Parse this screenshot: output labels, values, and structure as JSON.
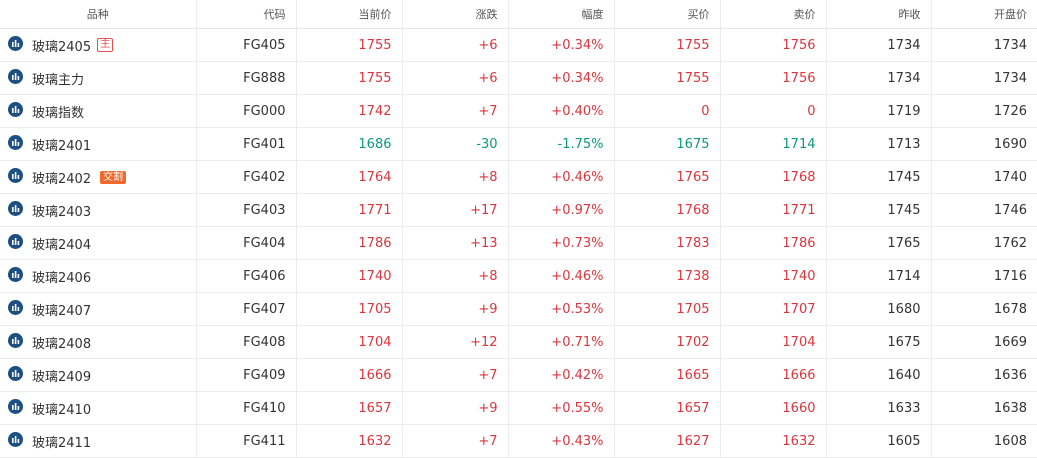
{
  "colors": {
    "up": "#d9363e",
    "down": "#0d9a7b",
    "icon": "#1d4f82",
    "tag_main": "#e84d4d",
    "tag_delivery": "#f0692b"
  },
  "headers": [
    "品种",
    "代码",
    "当前价",
    "涨跌",
    "幅度",
    "买价",
    "卖价",
    "昨收",
    "开盘价"
  ],
  "rows": [
    {
      "name": "玻璃2405",
      "tag": "主",
      "code": "FG405",
      "price": "1755",
      "change": "+6",
      "pct": "+0.34%",
      "bid": "1755",
      "ask": "1756",
      "prev": "1734",
      "open": "1734",
      "dir": "up"
    },
    {
      "name": "玻璃主力",
      "tag": "",
      "code": "FG888",
      "price": "1755",
      "change": "+6",
      "pct": "+0.34%",
      "bid": "1755",
      "ask": "1756",
      "prev": "1734",
      "open": "1734",
      "dir": "up"
    },
    {
      "name": "玻璃指数",
      "tag": "",
      "code": "FG000",
      "price": "1742",
      "change": "+7",
      "pct": "+0.40%",
      "bid": "0",
      "ask": "0",
      "prev": "1719",
      "open": "1726",
      "dir": "up"
    },
    {
      "name": "玻璃2401",
      "tag": "",
      "code": "FG401",
      "price": "1686",
      "change": "-30",
      "pct": "-1.75%",
      "bid": "1675",
      "ask": "1714",
      "prev": "1713",
      "open": "1690",
      "dir": "down"
    },
    {
      "name": "玻璃2402",
      "tag": "交割",
      "code": "FG402",
      "price": "1764",
      "change": "+8",
      "pct": "+0.46%",
      "bid": "1765",
      "ask": "1768",
      "prev": "1745",
      "open": "1740",
      "dir": "up"
    },
    {
      "name": "玻璃2403",
      "tag": "",
      "code": "FG403",
      "price": "1771",
      "change": "+17",
      "pct": "+0.97%",
      "bid": "1768",
      "ask": "1771",
      "prev": "1745",
      "open": "1746",
      "dir": "up"
    },
    {
      "name": "玻璃2404",
      "tag": "",
      "code": "FG404",
      "price": "1786",
      "change": "+13",
      "pct": "+0.73%",
      "bid": "1783",
      "ask": "1786",
      "prev": "1765",
      "open": "1762",
      "dir": "up"
    },
    {
      "name": "玻璃2406",
      "tag": "",
      "code": "FG406",
      "price": "1740",
      "change": "+8",
      "pct": "+0.46%",
      "bid": "1738",
      "ask": "1740",
      "prev": "1714",
      "open": "1716",
      "dir": "up"
    },
    {
      "name": "玻璃2407",
      "tag": "",
      "code": "FG407",
      "price": "1705",
      "change": "+9",
      "pct": "+0.53%",
      "bid": "1705",
      "ask": "1707",
      "prev": "1680",
      "open": "1678",
      "dir": "up"
    },
    {
      "name": "玻璃2408",
      "tag": "",
      "code": "FG408",
      "price": "1704",
      "change": "+12",
      "pct": "+0.71%",
      "bid": "1702",
      "ask": "1704",
      "prev": "1675",
      "open": "1669",
      "dir": "up"
    },
    {
      "name": "玻璃2409",
      "tag": "",
      "code": "FG409",
      "price": "1666",
      "change": "+7",
      "pct": "+0.42%",
      "bid": "1665",
      "ask": "1666",
      "prev": "1640",
      "open": "1636",
      "dir": "up"
    },
    {
      "name": "玻璃2410",
      "tag": "",
      "code": "FG410",
      "price": "1657",
      "change": "+9",
      "pct": "+0.55%",
      "bid": "1657",
      "ask": "1660",
      "prev": "1633",
      "open": "1638",
      "dir": "up"
    },
    {
      "name": "玻璃2411",
      "tag": "",
      "code": "FG411",
      "price": "1632",
      "change": "+7",
      "pct": "+0.43%",
      "bid": "1627",
      "ask": "1632",
      "prev": "1605",
      "open": "1608",
      "dir": "up"
    }
  ]
}
